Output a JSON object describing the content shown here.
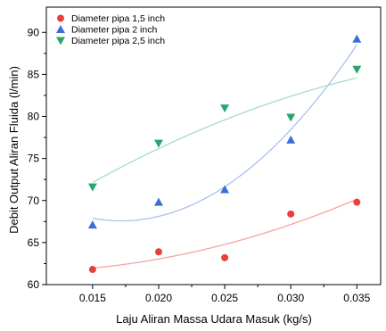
{
  "chart_data": {
    "type": "scatter",
    "title": "",
    "xlabel": "Laju Aliran Massa Udara Masuk (kg/s)",
    "ylabel": "Debit Output Aliran Fluida (l/min)",
    "xlim": [
      0.0115,
      0.0368
    ],
    "ylim": [
      60,
      93
    ],
    "x_ticks": [
      0.015,
      0.02,
      0.025,
      0.03,
      0.035
    ],
    "x_tick_labels": [
      "0.015",
      "0.020",
      "0.025",
      "0.030",
      "0.035"
    ],
    "y_ticks": [
      60,
      65,
      70,
      75,
      80,
      85,
      90
    ],
    "y_tick_labels": [
      "60",
      "65",
      "70",
      "75",
      "80",
      "85",
      "90"
    ],
    "grid": false,
    "legend_position": "top-left",
    "series": [
      {
        "name": "Diameter pipa 1,5 inch",
        "marker": "circle",
        "color": "#e8403f",
        "fit_color": "#f5a3a3",
        "x": [
          0.015,
          0.02,
          0.025,
          0.03,
          0.035
        ],
        "y": [
          61.8,
          63.9,
          63.2,
          68.4,
          69.8
        ]
      },
      {
        "name": "Diameter pipa 2 inch",
        "marker": "triangle-up",
        "color": "#3a6fd8",
        "fit_color": "#a9c0ee",
        "x": [
          0.015,
          0.02,
          0.025,
          0.03,
          0.035
        ],
        "y": [
          67.1,
          69.8,
          71.3,
          77.2,
          89.2
        ]
      },
      {
        "name": "Diameter pipa 2,5 inch",
        "marker": "triangle-down",
        "color": "#2aa56f",
        "fit_color": "#a5dcc2",
        "x": [
          0.015,
          0.02,
          0.025,
          0.03,
          0.035
        ],
        "y": [
          71.6,
          76.8,
          81.0,
          79.9,
          85.6
        ]
      }
    ]
  }
}
